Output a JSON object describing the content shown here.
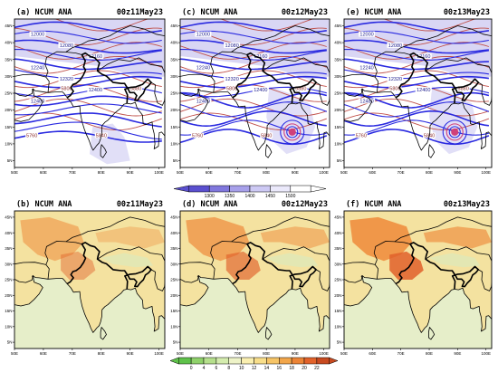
{
  "figure": {
    "panels": [
      {
        "letter": "(a)",
        "model": "NCUM ANA",
        "date": "00z11May23",
        "field": "geopotential",
        "cyclone": false
      },
      {
        "letter": "(c)",
        "model": "NCUM ANA",
        "date": "00z12May23",
        "field": "geopotential",
        "cyclone": true
      },
      {
        "letter": "(e)",
        "model": "NCUM ANA",
        "date": "00z13May23",
        "field": "geopotential",
        "cyclone": true
      },
      {
        "letter": "(b)",
        "model": "NCUM ANA",
        "date": "00z11May23",
        "field": "temperature"
      },
      {
        "letter": "(d)",
        "model": "NCUM ANA",
        "date": "00z12May23",
        "field": "temperature"
      },
      {
        "letter": "(f)",
        "model": "NCUM ANA",
        "date": "00z13May23",
        "field": "temperature"
      }
    ],
    "lon_ticks": [
      "50E",
      "60E",
      "70E",
      "80E",
      "90E",
      "100E"
    ],
    "lat_ticks": [
      "45N",
      "40N",
      "35N",
      "30N",
      "25N",
      "20N",
      "15N",
      "10N",
      "5N"
    ],
    "contour_labels_blue": [
      "12000",
      "12080",
      "12160",
      "12240",
      "12320",
      "12400",
      "12480"
    ],
    "contour_labels_red": [
      "5760",
      "5800",
      "5840",
      "5880"
    ],
    "colorbar_top": {
      "ticks": [
        "1300",
        "1350",
        "1400",
        "1450",
        "1500"
      ],
      "colors": [
        "#5a4fcf",
        "#8077dd",
        "#a7a0ea",
        "#cdc9f4",
        "#ebe9fb",
        "#ffffff"
      ]
    },
    "colorbar_bottom": {
      "ticks": [
        "0",
        "4",
        "6",
        "8",
        "10",
        "12",
        "14",
        "16",
        "18",
        "20",
        "22"
      ],
      "colors": [
        "#5fc24a",
        "#8fd16a",
        "#b5df8c",
        "#d4ecae",
        "#eef3c8",
        "#faefb0",
        "#f8de8a",
        "#f6c466",
        "#f2a64a",
        "#ec8436",
        "#e2622a",
        "#c84a20"
      ]
    },
    "colors": {
      "land_temp": "#f4e2a0",
      "ocean_temp": "#e6eec9",
      "hot": "#ee8a3a",
      "hotter": "#e0602a",
      "geo_contour": "#2a2ae0",
      "thick_contour": "#c0504a",
      "shade": "#c9c4f0",
      "cyclone": "#d0407a"
    }
  }
}
